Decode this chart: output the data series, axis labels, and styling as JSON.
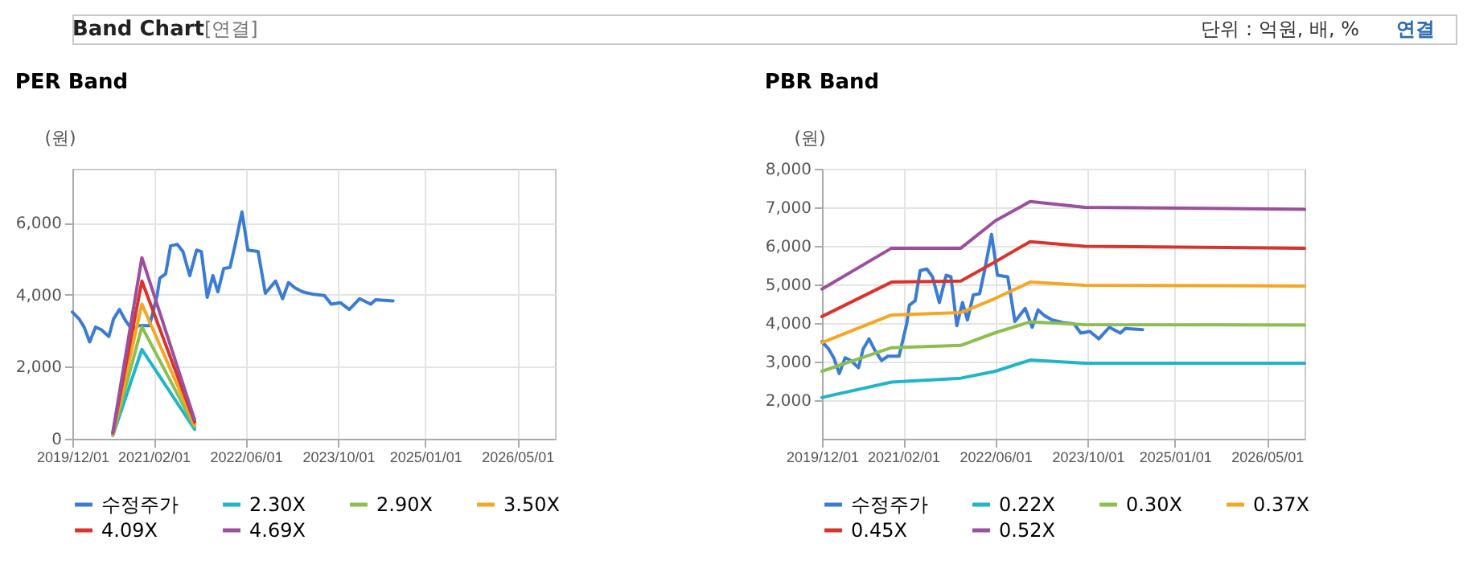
{
  "chart_data": [
    {
      "type": "line",
      "title": "PER Band",
      "ylabel": "(원)",
      "annotations": [
        "Band Chart",
        "[연결]",
        "단위 : 억원, 배, %",
        "연결"
      ],
      "x": [
        "2019-12-01",
        "2020-01-05",
        "2020-02-01",
        "2020-03-01",
        "2020-04-01",
        "2020-05-01",
        "2020-06-10",
        "2020-07-05",
        "2020-08-05",
        "2020-09-05",
        "2020-10-10",
        "2020-11-12",
        "2021-01-10",
        "2021-02-20",
        "2021-03-05",
        "2021-04-05",
        "2021-05-01",
        "2021-06-05",
        "2021-07-05",
        "2021-08-10",
        "2021-09-15",
        "2021-10-10",
        "2021-11-10",
        "2021-12-10",
        "2022-01-05",
        "2022-02-05",
        "2022-03-10",
        "2022-04-05",
        "2022-05-12",
        "2022-06-12",
        "2022-08-05",
        "2022-09-12",
        "2022-11-05",
        "2022-12-12",
        "2023-01-12",
        "2023-02-15",
        "2023-03-28",
        "2023-05-25",
        "2023-07-20",
        "2023-08-25",
        "2023-10-12",
        "2023-11-28",
        "2024-01-22",
        "2024-03-20",
        "2024-04-15",
        "2024-07-15"
      ],
      "series": [
        {
          "name": "수정주가",
          "color": "#3a7bd5",
          "values": [
            3520,
            3330,
            3100,
            2690,
            3100,
            3030,
            2840,
            3330,
            3590,
            3290,
            3030,
            3140,
            3140,
            4000,
            4460,
            4580,
            5360,
            5400,
            5200,
            4530,
            5240,
            5200,
            3930,
            4530,
            4080,
            4730,
            4760,
            5360,
            6300,
            5240,
            5200,
            4040,
            4380,
            3890,
            4340,
            4190,
            4080,
            4010,
            3980,
            3740,
            3780,
            3590,
            3890,
            3740,
            3860,
            3830
          ]
        },
        {
          "name": "2.30X",
          "color": "#20b5c8",
          "x": [
            "2020-07-01",
            "2020-12-01",
            "2021-09-05"
          ],
          "values": [
            90,
            2480,
            260
          ]
        },
        {
          "name": "2.90X",
          "color": "#8cbf4f",
          "x": [
            "2020-07-01",
            "2020-12-01",
            "2021-09-05"
          ],
          "values": [
            110,
            3110,
            330
          ]
        },
        {
          "name": "3.50X",
          "color": "#f5a623",
          "x": [
            "2020-07-01",
            "2020-12-01",
            "2021-09-05"
          ],
          "values": [
            130,
            3740,
            390
          ]
        },
        {
          "name": "4.09X",
          "color": "#d9342b",
          "x": [
            "2020-07-01",
            "2020-12-01",
            "2021-09-05"
          ],
          "values": [
            160,
            4380,
            460
          ]
        },
        {
          "name": "4.69X",
          "color": "#9b4f9e",
          "x": [
            "2020-07-01",
            "2020-12-01",
            "2021-09-05"
          ],
          "values": [
            180,
            5030,
            520
          ]
        }
      ],
      "xlim": [
        "2019-12-01",
        "2026-11-15"
      ],
      "xticks": [
        {
          "value": "2019-12-01",
          "label": "2019/12/01"
        },
        {
          "value": "2021-02-01",
          "label": "2021/02/01"
        },
        {
          "value": "2022-06-01",
          "label": "2022/06/01"
        },
        {
          "value": "2023-10-01",
          "label": "2023/10/01"
        },
        {
          "value": "2025-01-01",
          "label": "2025/01/01"
        },
        {
          "value": "2026-05-01",
          "label": "2026/05/01"
        }
      ],
      "ylim": [
        0,
        7500
      ],
      "yticks": [
        0,
        {
          "value": 2000,
          "label": "2,000"
        },
        {
          "value": 4000,
          "label": "4,000"
        },
        {
          "value": 6000,
          "label": "6,000"
        }
      ],
      "grid": true,
      "legend": "bottom",
      "marker": "none",
      "line_style": "solid"
    },
    {
      "type": "line",
      "title": "PBR Band",
      "ylabel": "(원)",
      "x": [
        "2019-12-01",
        "2020-01-05",
        "2020-02-01",
        "2020-03-01",
        "2020-04-01",
        "2020-05-01",
        "2020-06-10",
        "2020-07-05",
        "2020-08-05",
        "2020-09-05",
        "2020-10-10",
        "2020-11-12",
        "2021-01-10",
        "2021-02-20",
        "2021-03-05",
        "2021-04-05",
        "2021-05-01",
        "2021-06-05",
        "2021-07-05",
        "2021-08-10",
        "2021-09-15",
        "2021-10-10",
        "2021-11-10",
        "2021-12-10",
        "2022-01-05",
        "2022-02-05",
        "2022-03-10",
        "2022-04-05",
        "2022-05-12",
        "2022-06-12",
        "2022-08-05",
        "2022-09-12",
        "2022-11-05",
        "2022-12-12",
        "2023-01-12",
        "2023-02-15",
        "2023-03-28",
        "2023-05-25",
        "2023-07-20",
        "2023-08-25",
        "2023-10-12",
        "2023-11-28",
        "2024-01-22",
        "2024-03-20",
        "2024-04-15",
        "2024-07-15"
      ],
      "series": [
        {
          "name": "수정주가",
          "color": "#3a7bd5",
          "values": [
            3520,
            3330,
            3100,
            2690,
            3100,
            3030,
            2840,
            3330,
            3590,
            3290,
            3030,
            3140,
            3140,
            4000,
            4460,
            4580,
            5360,
            5400,
            5200,
            4530,
            5240,
            5200,
            3930,
            4530,
            4080,
            4730,
            4760,
            5360,
            6300,
            5240,
            5200,
            4040,
            4380,
            3890,
            4340,
            4190,
            4080,
            4010,
            3980,
            3740,
            3780,
            3590,
            3890,
            3740,
            3860,
            3830
          ]
        },
        {
          "name": "0.22X",
          "color": "#20b5c8",
          "x": [
            "2019-12-01",
            "2020-12-01",
            "2021-12-01",
            "2022-06-01",
            "2022-12-01",
            "2023-09-15",
            "2026-11-15"
          ],
          "values": [
            2070,
            2470,
            2570,
            2750,
            3040,
            2960,
            2960
          ]
        },
        {
          "name": "0.30X",
          "color": "#8cbf4f",
          "x": [
            "2019-12-01",
            "2020-12-01",
            "2021-12-01",
            "2022-06-01",
            "2022-12-01",
            "2023-09-15",
            "2026-11-15"
          ],
          "values": [
            2750,
            3360,
            3420,
            3750,
            4030,
            3960,
            3950
          ]
        },
        {
          "name": "0.37X",
          "color": "#f5a623",
          "x": [
            "2019-12-01",
            "2020-12-01",
            "2021-12-01",
            "2022-06-01",
            "2022-12-01",
            "2023-09-15",
            "2026-11-15"
          ],
          "values": [
            3490,
            4210,
            4270,
            4640,
            5060,
            4980,
            4960
          ]
        },
        {
          "name": "0.45X",
          "color": "#d9342b",
          "x": [
            "2019-12-01",
            "2020-12-01",
            "2021-12-01",
            "2022-06-01",
            "2022-12-01",
            "2023-09-15",
            "2026-11-15"
          ],
          "values": [
            4170,
            5060,
            5090,
            5590,
            6110,
            5990,
            5940
          ]
        },
        {
          "name": "0.52X",
          "color": "#9b4f9e",
          "x": [
            "2019-12-01",
            "2020-12-01",
            "2021-12-01",
            "2022-06-01",
            "2022-12-01",
            "2023-09-15",
            "2026-11-15"
          ],
          "values": [
            4880,
            5940,
            5940,
            6650,
            7150,
            7000,
            6950
          ]
        }
      ],
      "xlim": [
        "2019-12-01",
        "2026-11-15"
      ],
      "xticks": [
        {
          "value": "2019-12-01",
          "label": "2019/12/01"
        },
        {
          "value": "2021-02-01",
          "label": "2021/02/01"
        },
        {
          "value": "2022-06-01",
          "label": "2022/06/01"
        },
        {
          "value": "2023-10-01",
          "label": "2023/10/01"
        },
        {
          "value": "2025-01-01",
          "label": "2025/01/01"
        },
        {
          "value": "2026-05-01",
          "label": "2026/05/01"
        }
      ],
      "ylim": [
        1000,
        8000
      ],
      "yticks": [
        {
          "value": 2000,
          "label": "2,000"
        },
        {
          "value": 3000,
          "label": "3,000"
        },
        {
          "value": 4000,
          "label": "4,000"
        },
        {
          "value": 5000,
          "label": "5,000"
        },
        {
          "value": 6000,
          "label": "6,000"
        },
        {
          "value": 7000,
          "label": "7,000"
        },
        {
          "value": 8000,
          "label": "8,000"
        }
      ],
      "grid": true,
      "legend": "bottom",
      "marker": "none",
      "line_style": "solid"
    }
  ]
}
